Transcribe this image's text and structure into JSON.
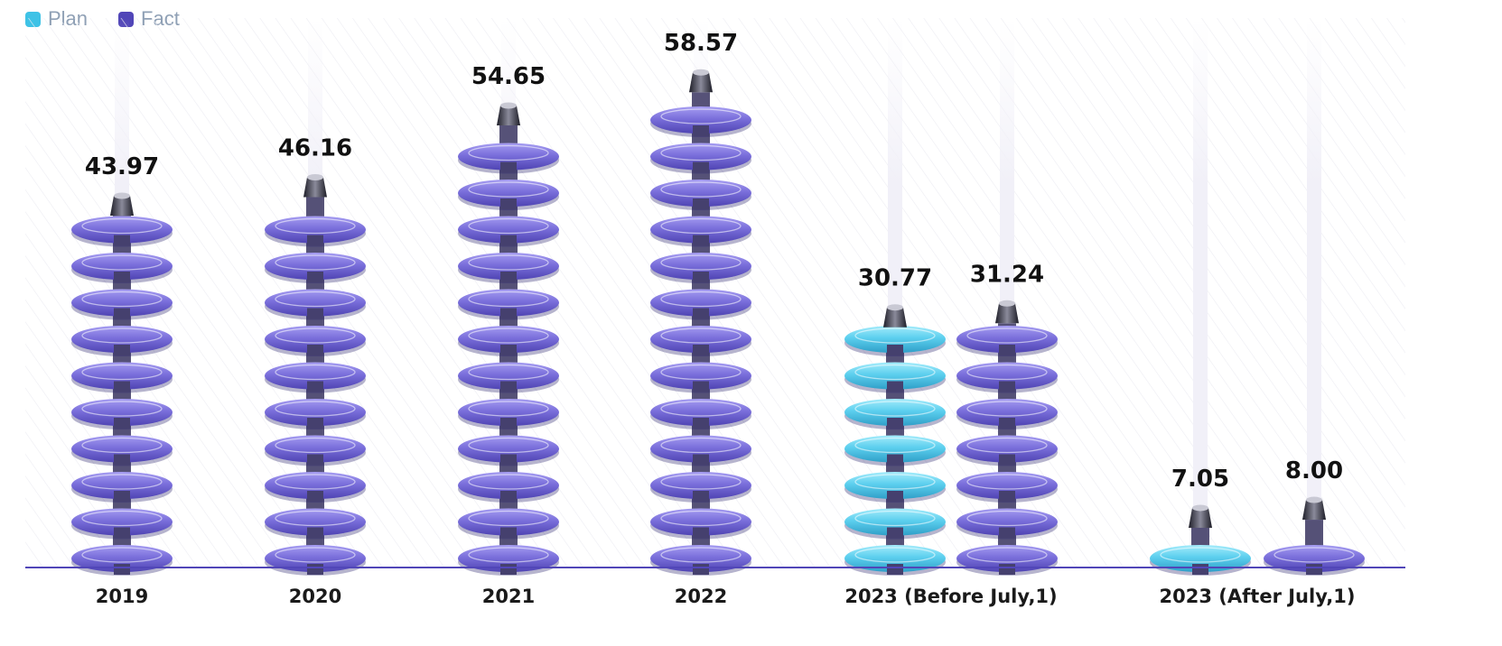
{
  "legend": {
    "items": [
      {
        "label": "Plan",
        "color": "#3ec2e6"
      },
      {
        "label": "Fact",
        "color": "#5146b8"
      }
    ]
  },
  "chart_data": {
    "type": "bar",
    "title": "",
    "xlabel": "",
    "ylabel": "",
    "ylim": [
      0,
      65
    ],
    "grid": false,
    "legend_position": "top-left",
    "categories": [
      "2019",
      "2020",
      "2021",
      "2022",
      "2023 (Before July,1)",
      "2023 (After July,1)"
    ],
    "series": [
      {
        "name": "Plan",
        "color": "#3ec2e6",
        "values": [
          null,
          null,
          null,
          null,
          30.77,
          7.05
        ]
      },
      {
        "name": "Fact",
        "color": "#5146b8",
        "values": [
          43.97,
          46.16,
          54.65,
          58.57,
          31.24,
          8.0
        ]
      }
    ],
    "value_labels": {
      "Plan": [
        null,
        null,
        null,
        null,
        "30.77",
        "7.05"
      ],
      "Fact": [
        "43.97",
        "46.16",
        "54.65",
        "58.57",
        "31.24",
        "8.00"
      ]
    }
  }
}
